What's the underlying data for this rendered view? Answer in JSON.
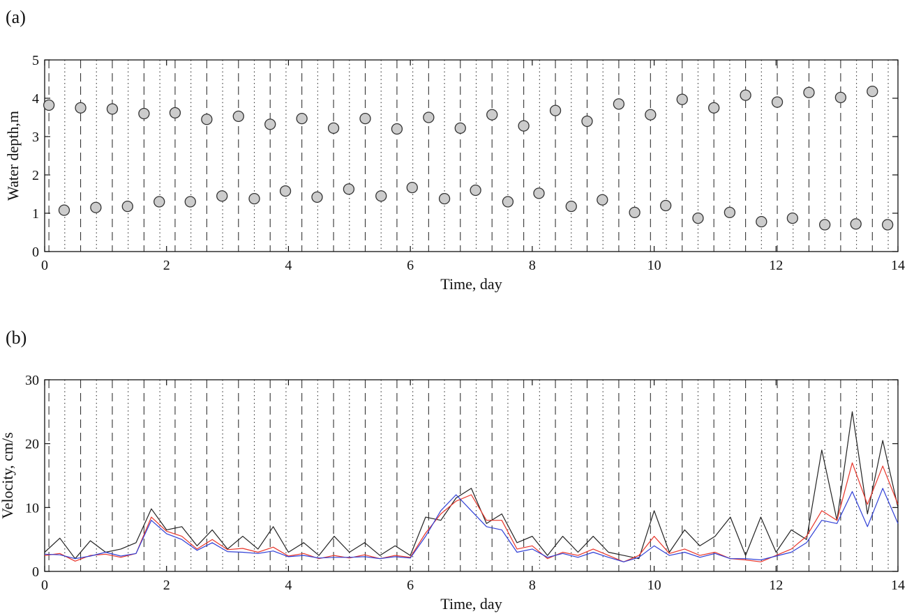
{
  "panels": {
    "a_label": "(a)",
    "b_label": "(b)"
  },
  "chart_data": [
    {
      "type": "scatter",
      "panel": "(a)",
      "title": "",
      "xlabel": "Time, day",
      "ylabel": "Water depth,m",
      "xlim": [
        0,
        14
      ],
      "ylim": [
        0,
        5
      ],
      "xticks": [
        0,
        2,
        4,
        6,
        8,
        10,
        12,
        14
      ],
      "yticks": [
        0,
        1,
        2,
        3,
        4,
        5
      ],
      "grid": false,
      "marker_color": "#cccccc",
      "marker_edge": "#333333",
      "series": [
        {
          "x": [
            0.07,
            0.32,
            0.59,
            0.84,
            1.11,
            1.36,
            1.63,
            1.88,
            2.14,
            2.39,
            2.66,
            2.91,
            3.18,
            3.44,
            3.7,
            3.95,
            4.22,
            4.47,
            4.74,
            4.99,
            5.26,
            5.52,
            5.78,
            6.03,
            6.3,
            6.56,
            6.82,
            7.07,
            7.34,
            7.6,
            7.86,
            8.11,
            8.38,
            8.64,
            8.9,
            9.15,
            9.42,
            9.68,
            9.94,
            10.19,
            10.46,
            10.72,
            10.98,
            11.24,
            11.5,
            11.76,
            12.02,
            12.27,
            12.54,
            12.8,
            13.06,
            13.31,
            13.58,
            13.83
          ],
          "values": [
            3.82,
            1.08,
            3.75,
            1.15,
            3.72,
            1.18,
            3.6,
            1.3,
            3.62,
            1.3,
            3.45,
            1.45,
            3.53,
            1.38,
            3.32,
            1.58,
            3.47,
            1.42,
            3.22,
            1.63,
            3.47,
            1.45,
            3.2,
            1.67,
            3.5,
            1.38,
            3.22,
            1.6,
            3.57,
            1.3,
            3.28,
            1.52,
            3.68,
            1.18,
            3.4,
            1.35,
            3.85,
            1.02,
            3.57,
            1.2,
            3.97,
            0.87,
            3.75,
            1.02,
            4.08,
            0.78,
            3.9,
            0.87,
            4.15,
            0.7,
            4.02,
            0.72,
            4.18,
            0.7
          ]
        }
      ]
    },
    {
      "type": "line",
      "panel": "(b)",
      "title": "",
      "xlabel": "Time, day",
      "ylabel": "Velocity, cm/s",
      "xlim": [
        0,
        14
      ],
      "ylim": [
        0,
        30
      ],
      "xticks": [
        0,
        2,
        4,
        6,
        8,
        10,
        12,
        14
      ],
      "yticks": [
        0,
        10,
        20,
        30
      ],
      "grid": false,
      "x": [
        0,
        0.25,
        0.5,
        0.75,
        1,
        1.25,
        1.5,
        1.75,
        2,
        2.25,
        2.5,
        2.75,
        3,
        3.25,
        3.5,
        3.75,
        4,
        4.25,
        4.5,
        4.75,
        5,
        5.25,
        5.5,
        5.75,
        6,
        6.25,
        6.5,
        6.75,
        7,
        7.25,
        7.5,
        7.75,
        8,
        8.25,
        8.5,
        8.75,
        9,
        9.25,
        9.5,
        9.75,
        10,
        10.25,
        10.5,
        10.75,
        11,
        11.25,
        11.5,
        11.75,
        12,
        12.25,
        12.5,
        12.75,
        13,
        13.25,
        13.5,
        13.75,
        14
      ],
      "series": [
        {
          "color": "#222222",
          "values": [
            3.0,
            5.2,
            2.0,
            4.8,
            3.0,
            3.5,
            4.5,
            9.8,
            6.5,
            7.0,
            4.0,
            6.5,
            3.5,
            5.5,
            3.5,
            7.0,
            3.0,
            4.5,
            2.5,
            5.5,
            3.0,
            4.5,
            2.5,
            4.0,
            2.5,
            8.5,
            8.0,
            11.5,
            13.0,
            7.5,
            9.0,
            4.5,
            5.5,
            2.5,
            5.5,
            3.0,
            5.5,
            3.0,
            2.5,
            2.0,
            9.5,
            3.0,
            6.5,
            4.0,
            5.5,
            8.5,
            2.5,
            8.5,
            3.0,
            6.5,
            5.0,
            19.0,
            8.0,
            25.0,
            9.0,
            20.5,
            10.0
          ]
        },
        {
          "color": "#e8352a",
          "values": [
            2.5,
            2.8,
            1.6,
            2.5,
            2.7,
            2.2,
            2.8,
            8.5,
            6.3,
            5.5,
            3.5,
            5.0,
            3.4,
            3.6,
            3.0,
            3.8,
            2.4,
            2.8,
            2.0,
            2.5,
            2.1,
            2.6,
            2.0,
            2.5,
            2.2,
            6.0,
            9.0,
            11.0,
            12.0,
            8.0,
            8.0,
            3.5,
            4.0,
            2.0,
            3.0,
            2.5,
            3.5,
            2.5,
            1.5,
            2.5,
            5.5,
            2.8,
            3.5,
            2.5,
            3.0,
            2.0,
            1.8,
            1.5,
            2.5,
            3.5,
            5.5,
            9.5,
            8.0,
            17.0,
            10.5,
            16.5,
            10.5
          ]
        },
        {
          "color": "#2f3fd6",
          "values": [
            2.7,
            2.6,
            2.0,
            2.4,
            3.0,
            2.4,
            2.8,
            8.0,
            5.9,
            5.0,
            3.3,
            4.5,
            3.1,
            3.0,
            2.8,
            3.2,
            2.3,
            2.5,
            2.1,
            2.2,
            2.2,
            2.3,
            2.0,
            2.3,
            2.1,
            5.5,
            9.5,
            12.0,
            9.5,
            7.0,
            6.5,
            3.0,
            3.5,
            2.2,
            2.8,
            2.2,
            3.0,
            2.2,
            1.5,
            2.2,
            4.0,
            2.5,
            3.0,
            2.2,
            2.8,
            2.0,
            2.0,
            1.8,
            2.4,
            3.0,
            4.5,
            8.0,
            7.5,
            12.5,
            7.0,
            13.0,
            7.5
          ]
        }
      ]
    }
  ]
}
